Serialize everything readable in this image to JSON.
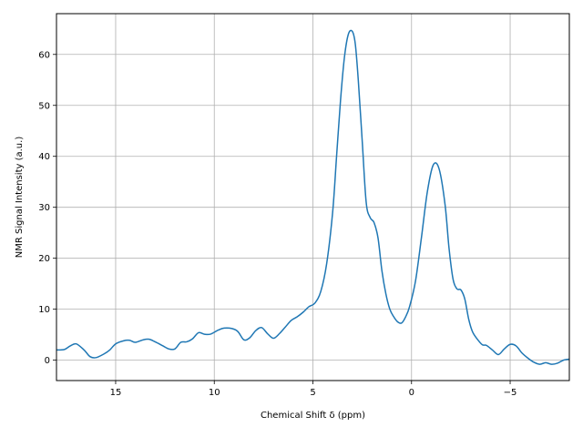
{
  "chart_data": {
    "type": "line",
    "title": "",
    "xlabel": "Chemical Shift δ (ppm)",
    "ylabel": "NMR Signal Intensity (a.u.)",
    "xlim": [
      18,
      -8
    ],
    "ylim": [
      -4,
      68
    ],
    "x_inverted": true,
    "grid": true,
    "xticks": [
      15,
      10,
      5,
      0,
      -5
    ],
    "xtick_labels": [
      "15",
      "10",
      "5",
      "0",
      "−5"
    ],
    "yticks": [
      0,
      10,
      20,
      30,
      40,
      50,
      60
    ],
    "ytick_labels": [
      "0",
      "10",
      "20",
      "30",
      "40",
      "50",
      "60"
    ],
    "colors": {
      "line": "#1f77b4",
      "grid": "#b0b0b0",
      "axis": "#000000"
    },
    "series": [
      {
        "x": [
          18.0,
          17.6,
          17.3,
          17.0,
          16.6,
          16.3,
          16.0,
          15.6,
          15.3,
          15.0,
          14.6,
          14.3,
          14.0,
          13.6,
          13.3,
          13.0,
          12.6,
          12.3,
          12.0,
          11.7,
          11.4,
          11.1,
          10.8,
          10.5,
          10.2,
          9.8,
          9.5,
          9.1,
          8.8,
          8.5,
          8.2,
          7.9,
          7.6,
          7.3,
          7.0,
          6.7,
          6.4,
          6.1,
          5.8,
          5.5,
          5.2,
          4.9,
          4.6,
          4.3,
          4.0,
          3.8,
          3.6,
          3.4,
          3.2,
          3.0,
          2.85,
          2.7,
          2.5,
          2.3,
          2.1,
          1.9,
          1.7,
          1.5,
          1.3,
          1.1,
          0.9,
          0.7,
          0.5,
          0.3,
          0.1,
          -0.2,
          -0.5,
          -0.8,
          -1.1,
          -1.4,
          -1.7,
          -1.9,
          -2.1,
          -2.3,
          -2.5,
          -2.7,
          -2.9,
          -3.1,
          -3.4,
          -3.6,
          -3.8,
          -4.1,
          -4.4,
          -4.7,
          -5.0,
          -5.3,
          -5.6,
          -5.9,
          -6.2,
          -6.5,
          -6.8,
          -7.1,
          -7.4,
          -7.7,
          -8.0
        ],
        "y": [
          2.0,
          2.1,
          2.8,
          3.2,
          2.0,
          0.7,
          0.5,
          1.2,
          2.0,
          3.2,
          3.8,
          3.9,
          3.5,
          4.0,
          4.1,
          3.6,
          2.8,
          2.2,
          2.2,
          3.5,
          3.6,
          4.2,
          5.4,
          5.1,
          5.1,
          5.9,
          6.3,
          6.2,
          5.6,
          4.0,
          4.4,
          5.8,
          6.4,
          5.2,
          4.3,
          5.2,
          6.5,
          7.8,
          8.5,
          9.4,
          10.5,
          11.2,
          13.5,
          19.0,
          29.0,
          40.0,
          51.0,
          59.5,
          64.0,
          64.5,
          62.0,
          55.0,
          43.0,
          31.0,
          28.0,
          27.0,
          24.0,
          17.5,
          13.0,
          10.0,
          8.5,
          7.5,
          7.3,
          8.5,
          10.5,
          15.5,
          24.0,
          33.0,
          38.3,
          37.5,
          30.5,
          22.0,
          16.0,
          14.0,
          13.8,
          12.0,
          8.0,
          5.5,
          3.8,
          3.0,
          2.9,
          2.0,
          1.1,
          2.2,
          3.1,
          2.8,
          1.4,
          0.4,
          -0.4,
          -0.8,
          -0.5,
          -0.8,
          -0.6,
          0.0,
          0.2
        ]
      }
    ]
  }
}
